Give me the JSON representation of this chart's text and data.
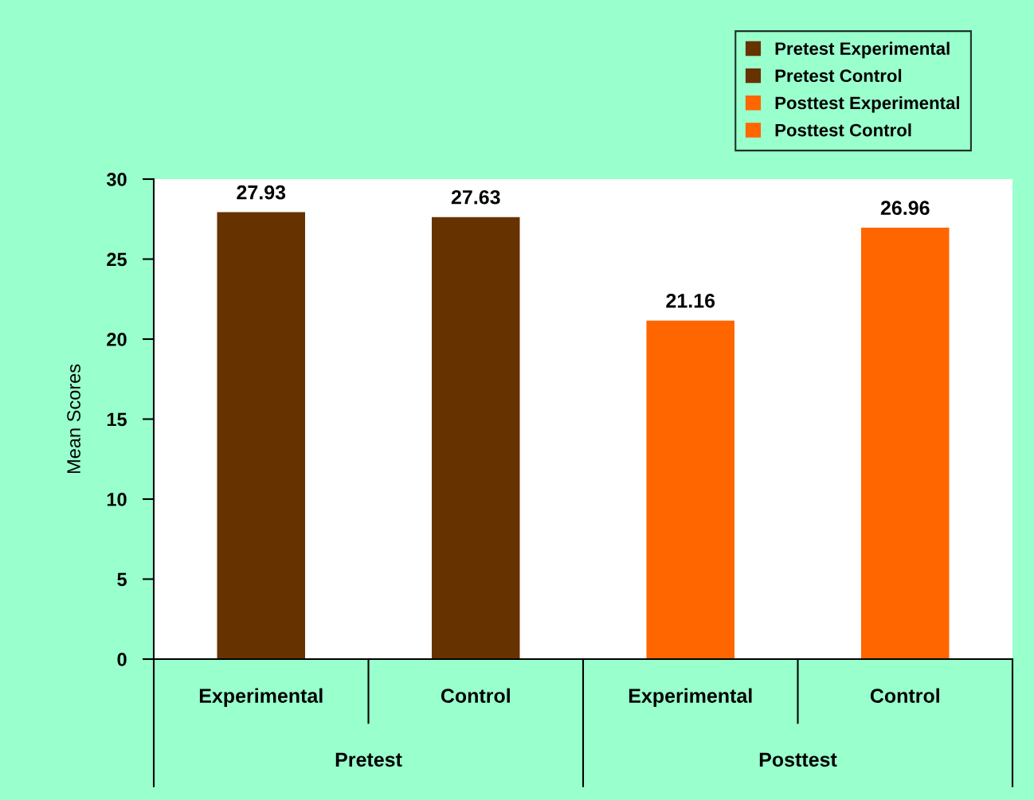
{
  "chart_data": {
    "type": "bar",
    "ylabel": "Mean Scores",
    "categories": [
      "Experimental",
      "Control",
      "Experimental",
      "Control"
    ],
    "series": [
      {
        "name": "Pretest Experimental",
        "color": "#663300",
        "values": [
          27.93,
          null,
          null,
          null
        ]
      },
      {
        "name": "Pretest Control",
        "color": "#663300",
        "values": [
          null,
          27.63,
          null,
          null
        ]
      },
      {
        "name": "Posttest Experimental",
        "color": "#ff6600",
        "values": [
          null,
          null,
          21.16,
          null
        ]
      },
      {
        "name": "Posttest Control",
        "color": "#ff6600",
        "values": [
          null,
          null,
          null,
          26.96
        ]
      }
    ],
    "ylim": [
      0,
      30
    ],
    "yticks": [
      0,
      5,
      10,
      15,
      20,
      25,
      30
    ],
    "data_labels": true,
    "legend": "top right",
    "grid": false,
    "annotations": [
      "Pretest",
      "Posttest"
    ]
  }
}
